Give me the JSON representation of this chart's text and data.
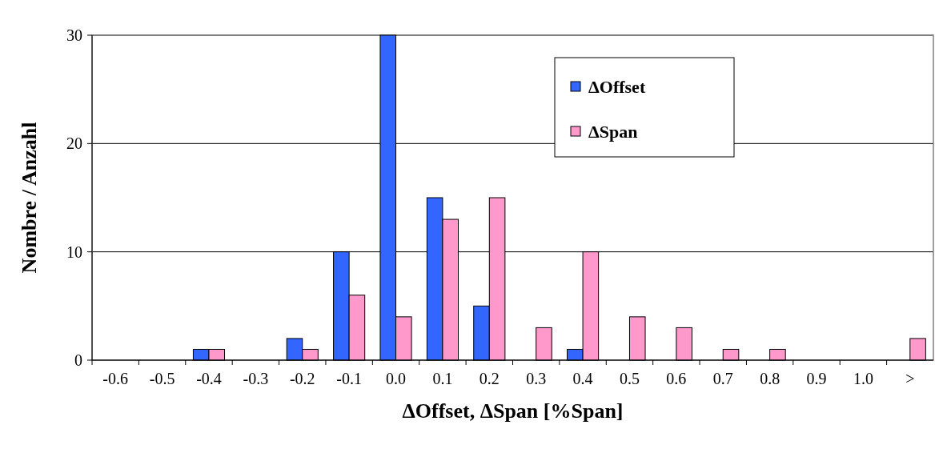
{
  "chart_data": {
    "type": "bar",
    "xlabel": "ΔOffset, ΔSpan [%Span]",
    "ylabel": "Nombre / Anzahl",
    "categories": [
      "-0.6",
      "-0.5",
      "-0.4",
      "-0.3",
      "-0.2",
      "-0.1",
      "0.0",
      "0.1",
      "0.2",
      "0.3",
      "0.4",
      "0.5",
      "0.6",
      "0.7",
      "0.8",
      "0.9",
      "1.0",
      ">"
    ],
    "series": [
      {
        "name": "ΔOffset",
        "color": "#3366ff",
        "values": [
          0,
          0,
          1,
          0,
          2,
          10,
          30,
          15,
          5,
          0,
          1,
          0,
          0,
          0,
          0,
          0,
          0,
          0
        ]
      },
      {
        "name": "ΔSpan",
        "color": "#ff99cc",
        "values": [
          0,
          0,
          1,
          0,
          1,
          6,
          4,
          13,
          15,
          3,
          10,
          4,
          3,
          1,
          1,
          0,
          0,
          2
        ]
      }
    ],
    "ylim": [
      0,
      30
    ],
    "yticks": [
      0,
      10,
      20,
      30
    ],
    "grid": "y",
    "legend": "top right"
  }
}
